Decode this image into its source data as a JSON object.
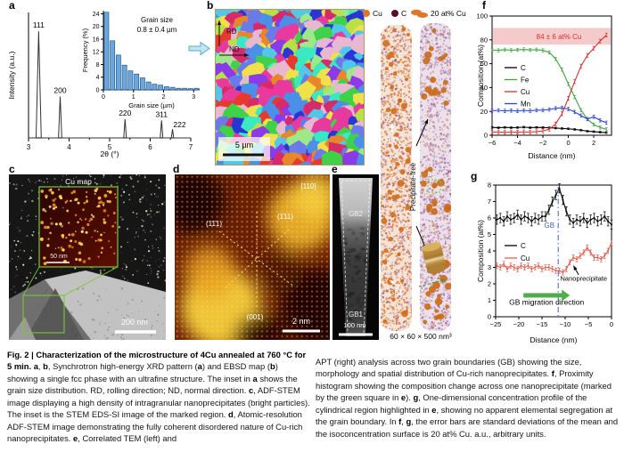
{
  "figure": {
    "label": "Fig. 2"
  },
  "panels": {
    "a": {
      "letter": "a"
    },
    "b": {
      "letter": "b",
      "rd_label": "RD",
      "nd_label": "ND",
      "scale_label": "5 µm",
      "palette": [
        "#3fd14a",
        "#2a35d6",
        "#e8392e",
        "#e83a9e",
        "#52c8e8",
        "#b7e049",
        "#8a3ae8",
        "#e8862a",
        "#3ae8c2",
        "#f0e049",
        "#6a7ae8",
        "#d62a6a",
        "#9fe88a",
        "#e8b7d0",
        "#4a90e8"
      ]
    },
    "c": {
      "letter": "c",
      "inset_label": "Cu map",
      "inset_scale_label": "50 nm",
      "scale_label": "200 nm"
    },
    "d": {
      "letter": "d",
      "zone_axis_label": "[110]",
      "plane_label_1": "(11̄1)",
      "plane_label_2": "(1̄11)",
      "plane_label_3": "(001)",
      "scale_label": "2 nm"
    },
    "e": {
      "letter": "e",
      "gb_top_label": "GB2",
      "gb_bottom_label": "GB1",
      "scale_label": "100 nm"
    },
    "apt": {
      "legend": [
        {
          "symbol": "sphere",
          "color": "#e0762a",
          "label": "Cu"
        },
        {
          "symbol": "sphere",
          "color": "#551029",
          "label": "C"
        },
        {
          "symbol": "isosurface",
          "color": "#e0762a",
          "label": "20 at% Cu"
        }
      ],
      "gb_top_label": "GB2",
      "gb_bottom_label": "GB1",
      "precipitate_free_label": "Precipitate-free",
      "volume_label": "60 × 60 × 500 nm³"
    },
    "f": {
      "letter": "f"
    },
    "g": {
      "letter": "g"
    }
  },
  "chart_data": [
    {
      "id": "xrd",
      "type": "line",
      "xlabel": "2θ (°)",
      "ylabel": "Intensity (a.u.)",
      "xlim": [
        3,
        7
      ],
      "xticks": [
        3,
        4,
        5,
        6,
        7
      ],
      "peaks": [
        {
          "label": "111",
          "x": 3.25,
          "h": 0.85,
          "dx": 0,
          "dy": 0
        },
        {
          "label": "200",
          "x": 3.78,
          "h": 0.33,
          "dx": 0,
          "dy": 0
        },
        {
          "label": "220",
          "x": 5.38,
          "h": 0.15,
          "dx": 0,
          "dy": 0
        },
        {
          "label": "311",
          "x": 6.28,
          "h": 0.14,
          "dx": 0,
          "dy": 0
        },
        {
          "label": "222",
          "x": 6.55,
          "h": 0.07,
          "dx": 8,
          "dy": 2
        }
      ]
    },
    {
      "id": "grain_hist",
      "type": "bar",
      "xlabel": "Grain size (µm)",
      "ylabel": "Frequency (%)",
      "annotation_line1": "Grain size",
      "annotation_line2": "0.8 ± 0.4 µm",
      "xlim": [
        0,
        3.2
      ],
      "ylim": [
        0,
        25
      ],
      "xticks": [
        0,
        1,
        2,
        3
      ],
      "yticks": [
        0,
        4,
        8,
        12,
        16,
        20,
        24
      ],
      "bin_width": 0.2,
      "bar_color": "#6aa7dd",
      "bar_edge": "#2a5a8a",
      "values": [
        24.5,
        15.5,
        11,
        7.8,
        6,
        5,
        3.8,
        2.5,
        1.8,
        1.5,
        1,
        0.8,
        0.5,
        0.5,
        0.4,
        0.5
      ]
    },
    {
      "id": "proxigram",
      "type": "line",
      "xlabel": "Distance (nm)",
      "ylabel": "Composition (at%)",
      "xlim": [
        -6,
        3.4
      ],
      "ylim": [
        0,
        100
      ],
      "xticks": [
        -6,
        -4,
        -2,
        0,
        2
      ],
      "yticks": [
        0,
        20,
        40,
        60,
        80,
        100
      ],
      "band": {
        "y0": 76,
        "y1": 90,
        "color": "#f5caca",
        "label": "84 ± 6 at% Cu",
        "label_color": "#d93030"
      },
      "x": [
        -6,
        -5.5,
        -5,
        -4.5,
        -4,
        -3.5,
        -3,
        -2.5,
        -2,
        -1.5,
        -1,
        -0.5,
        0,
        0.5,
        1,
        1.5,
        2,
        2.5,
        3
      ],
      "series": [
        {
          "name": "C",
          "color": "#000000",
          "err": 0.7,
          "y": [
            6.6,
            6.3,
            6.6,
            6.4,
            6.5,
            6.8,
            6.4,
            6.6,
            6.5,
            6.3,
            6.0,
            5.7,
            5.4,
            4.9,
            4.3,
            3.4,
            3.0,
            2.6,
            2.2
          ]
        },
        {
          "name": "Fe",
          "color": "#3fa33f",
          "err": 1.3,
          "y": [
            71.5,
            71.2,
            71.8,
            71.3,
            71.6,
            72.0,
            71.5,
            71.8,
            71.2,
            69.5,
            64,
            55,
            43,
            32,
            21,
            13.5,
            9,
            6.5,
            5
          ]
        },
        {
          "name": "Cu",
          "color": "#d93030",
          "err": 1.6,
          "y": [
            2.6,
            2.8,
            2.5,
            2.7,
            2.6,
            2.8,
            2.7,
            3.0,
            3.6,
            5,
            9.5,
            18,
            31,
            45,
            58,
            67,
            73,
            79,
            84
          ]
        },
        {
          "name": "Mn",
          "color": "#2745c8",
          "err": 1.4,
          "y": [
            20.6,
            20.9,
            20.4,
            20.7,
            20.3,
            20.8,
            20.5,
            21.0,
            21.0,
            21.6,
            22.6,
            23.0,
            22.0,
            19.5,
            16.5,
            13.5,
            15.5,
            12.5,
            10.5
          ]
        }
      ]
    },
    {
      "id": "gb_profile",
      "type": "line",
      "xlabel": "Distance (nm)",
      "ylabel": "Composition (at%)",
      "xlim": [
        -25,
        0
      ],
      "ylim": [
        0,
        8
      ],
      "xticks": [
        -25,
        -20,
        -15,
        -10,
        -5,
        0
      ],
      "yticks": [
        0,
        1,
        2,
        3,
        4,
        5,
        6,
        7,
        8
      ],
      "x": [
        -24.75,
        -24,
        -23.25,
        -22.5,
        -21.75,
        -21,
        -20.25,
        -19.5,
        -18.75,
        -18,
        -17.25,
        -16.5,
        -15.75,
        -15,
        -14.25,
        -13.5,
        -12.75,
        -12,
        -11.25,
        -10.5,
        -9.75,
        -9,
        -8.25,
        -7.5,
        -6.75,
        -6,
        -5.25,
        -4.5,
        -3.75,
        -3,
        -2.25,
        -1.5,
        -0.75,
        0
      ],
      "series": [
        {
          "name": "C",
          "color": "#000000",
          "err": 0.28,
          "marker": true,
          "y": [
            5.9,
            6.0,
            5.8,
            6.1,
            5.9,
            6.0,
            6.2,
            5.9,
            6.1,
            6.0,
            5.8,
            6.0,
            5.9,
            6.1,
            6.1,
            6.5,
            7.0,
            7.4,
            7.8,
            7.1,
            6.4,
            5.9,
            5.7,
            5.9,
            5.8,
            6.0,
            5.7,
            5.9,
            6.0,
            5.8,
            5.9,
            6.1,
            5.8,
            5.6
          ]
        },
        {
          "name": "Cu",
          "color": "#e06050",
          "err": 0.16,
          "marker": true,
          "y": [
            3.1,
            3.0,
            3.2,
            2.9,
            3.1,
            3.0,
            2.9,
            3.1,
            3.0,
            3.1,
            2.9,
            3.0,
            3.1,
            2.9,
            3.0,
            3.0,
            2.9,
            2.8,
            2.8,
            2.7,
            2.9,
            3.3,
            3.6,
            3.5,
            3.7,
            3.9,
            4.2,
            3.9,
            3.6,
            3.6,
            3.5,
            3.7,
            4.0,
            4.5
          ]
        }
      ],
      "annotations": [
        {
          "type": "vline",
          "x": -11.5,
          "color": "#4060c8"
        },
        {
          "type": "text",
          "x": -12.3,
          "y": 5.4,
          "text": "GB",
          "color": "#4060c8",
          "size": 8,
          "anchor": "end"
        },
        {
          "type": "arrow",
          "x1": -7.1,
          "y1": 2.55,
          "x2": -8.2,
          "y2": 3.1,
          "color": "#000000"
        },
        {
          "type": "text",
          "x": -6,
          "y": 2.2,
          "text": "Nanoprecipitate",
          "color": "#000000",
          "size": 7.5,
          "anchor": "middle"
        },
        {
          "type": "fatarrow",
          "x1": -19,
          "x2": -9,
          "y": 1.3,
          "color": "#4fae4a"
        },
        {
          "type": "text",
          "x": -14,
          "y": 0.72,
          "text": "GB migration direction",
          "color": "#000000",
          "size": 8.5,
          "anchor": "middle"
        }
      ]
    }
  ],
  "caption": {
    "left": [
      {
        "t": "Fig. 2 | Characterization of the microstructure of 4Cu annealed at 760 °C for 5 min. ",
        "b": true
      },
      {
        "t": "a",
        "b": true
      },
      {
        "t": ", ",
        "b": false
      },
      {
        "t": "b",
        "b": true
      },
      {
        "t": ", Synchrotron high-energy XRD pattern (",
        "b": false
      },
      {
        "t": "a",
        "b": true
      },
      {
        "t": ") and EBSD map (",
        "b": false
      },
      {
        "t": "b",
        "b": true
      },
      {
        "t": ") showing a single fcc phase with an ultrafine structure. The inset in ",
        "b": false
      },
      {
        "t": "a",
        "b": true
      },
      {
        "t": " shows the grain size distribution. RD, rolling direction; ND, normal direction. ",
        "b": false
      },
      {
        "t": "c",
        "b": true
      },
      {
        "t": ", ADF-STEM image displaying a high density of intragranular nanoprecipitates (bright particles). The inset is the STEM EDS-SI image of the marked region. ",
        "b": false
      },
      {
        "t": "d",
        "b": true
      },
      {
        "t": ", Atomic-resolution ADF-STEM image demonstrating the fully coherent disordered nature of Cu-rich nanoprecipitates. ",
        "b": false
      },
      {
        "t": "e",
        "b": true
      },
      {
        "t": ", Correlated TEM (left) and",
        "b": false
      }
    ],
    "right": [
      {
        "t": "APT (right) analysis across two grain boundaries (GB) showing the size, morphology and spatial distribution of Cu-rich nanoprecipitates. ",
        "b": false
      },
      {
        "t": "f",
        "b": true
      },
      {
        "t": ", Proximity histogram showing the composition change across one nanoprecipitate (marked by the green square in ",
        "b": false
      },
      {
        "t": "e",
        "b": true
      },
      {
        "t": "). ",
        "b": false
      },
      {
        "t": "g",
        "b": true
      },
      {
        "t": ", One-dimensional concentration profile of the cylindrical region highlighted in ",
        "b": false
      },
      {
        "t": "e",
        "b": true
      },
      {
        "t": ", showing no apparent elemental segregation at the grain boundary. In ",
        "b": false
      },
      {
        "t": "f",
        "b": true
      },
      {
        "t": ", ",
        "b": false
      },
      {
        "t": "g",
        "b": true
      },
      {
        "t": ", the error bars are standard deviations of the mean and the isoconcentration surface is 20 at% Cu. a.u., arbitrary units.",
        "b": false
      }
    ]
  }
}
